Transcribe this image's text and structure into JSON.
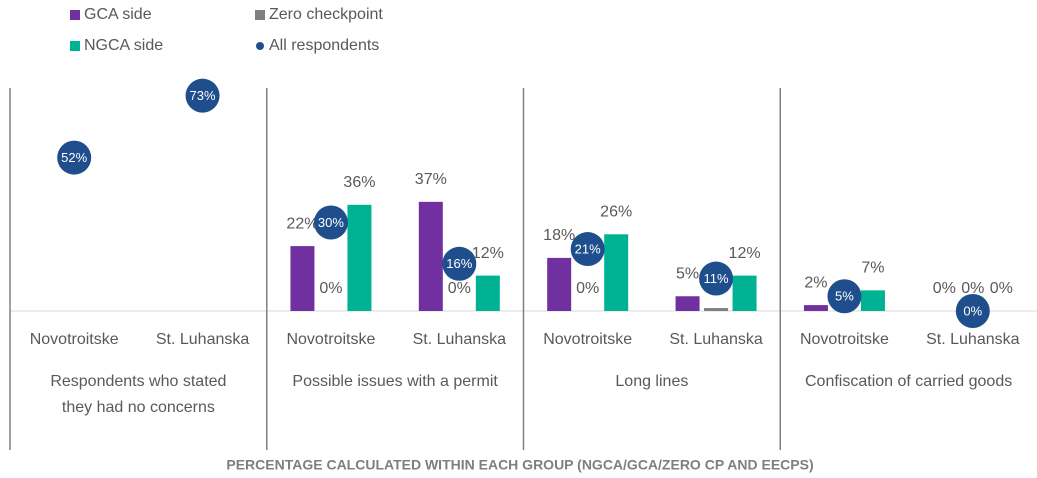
{
  "chart_data": {
    "type": "bar",
    "categories": [
      "Novotroitske",
      "St. Luhanska",
      "Novotroitske",
      "St. Luhanska",
      "Novotroitske",
      "St. Luhanska",
      "Novotroitske",
      "St. Luhanska"
    ],
    "groups": [
      [
        "Respondents who stated",
        "they had no concerns"
      ],
      [
        "Possible issues with a permit"
      ],
      [
        "Long lines"
      ],
      [
        "Confiscation of carried goods"
      ]
    ],
    "series": [
      {
        "name": "GCA side",
        "color": "#7030a0",
        "marker": "bar",
        "values": [
          null,
          null,
          22,
          37,
          18,
          5,
          2,
          0
        ],
        "value_labels": [
          null,
          null,
          "22%",
          "37%",
          "18%",
          "5%",
          "2%",
          "0%"
        ]
      },
      {
        "name": "Zero checkpoint",
        "color": "#7f7f7f",
        "marker": "bar",
        "values": [
          null,
          null,
          0,
          0,
          0,
          1,
          0,
          0
        ],
        "value_labels": [
          null,
          null,
          "0%",
          "0%",
          "0%",
          "1%",
          "0%",
          "0%"
        ]
      },
      {
        "name": "NGCA side",
        "color": "#00b294",
        "marker": "bar",
        "values": [
          null,
          null,
          36,
          12,
          26,
          12,
          7,
          0
        ],
        "value_labels": [
          null,
          null,
          "36%",
          "12%",
          "26%",
          "12%",
          "7%",
          "0%"
        ]
      },
      {
        "name": "All respondents",
        "color": "#1f4e8c",
        "marker": "circle",
        "values": [
          52,
          73,
          30,
          16,
          21,
          11,
          5,
          0
        ],
        "value_labels": [
          "52%",
          "73%",
          "30%",
          "16%",
          "21%",
          "11%",
          "5%",
          "0%"
        ]
      }
    ],
    "ylim": [
      0,
      100
    ],
    "x_label": "PERCENTAGE CALCULATED WITHIN EACH GROUP (NGCA/GCA/ZERO CP AND EECPS)"
  }
}
